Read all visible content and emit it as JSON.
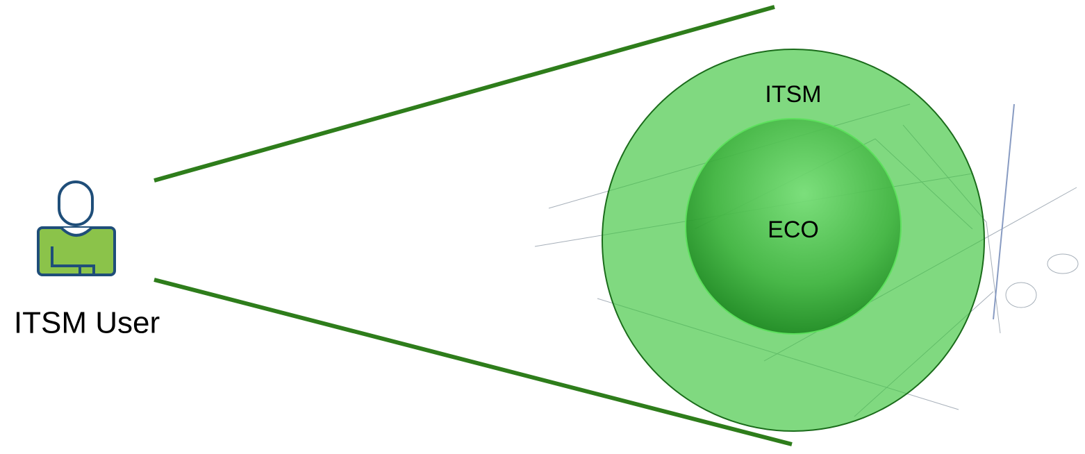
{
  "nodes": [
    {
      "label": "ITSM User"
    },
    {
      "label": "ITSM"
    },
    {
      "label": "ECO"
    }
  ]
}
